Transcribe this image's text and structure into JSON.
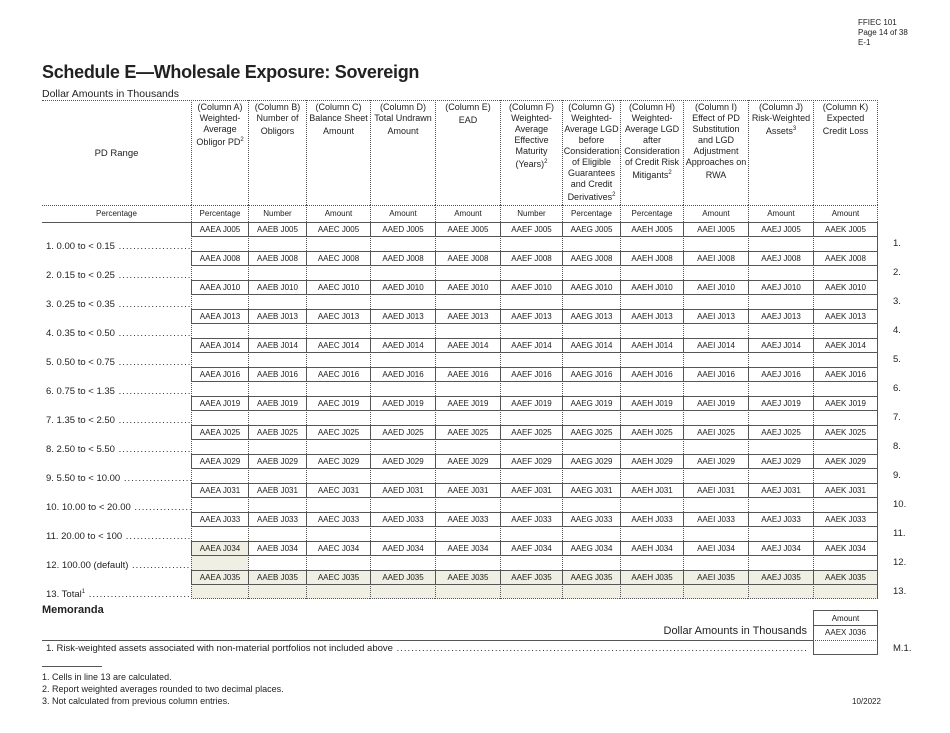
{
  "header": {
    "form": "FFIEC 101",
    "page": "Page 14 of 38",
    "code": "E-1"
  },
  "title": "Schedule E—Wholesale Exposure: Sovereign",
  "subtitle": "Dollar Amounts in Thousands",
  "first_col": {
    "heading": "PD Range",
    "unit": "Percentage"
  },
  "columns": [
    {
      "head": "(Column A) Weighted-Average Obligor PD",
      "sup": "2",
      "unit": "Percentage",
      "letter": "A"
    },
    {
      "head": "(Column B) Number of Obligors",
      "sup": "",
      "unit": "Number",
      "letter": "B"
    },
    {
      "head": "(Column C) Balance Sheet Amount",
      "sup": "",
      "unit": "Amount",
      "letter": "C"
    },
    {
      "head": "(Column D) Total Undrawn Amount",
      "sup": "",
      "unit": "Amount",
      "letter": "D"
    },
    {
      "head": "(Column E) EAD",
      "sup": "",
      "unit": "Amount",
      "letter": "E"
    },
    {
      "head": "(Column F) Weighted-Average Effective Maturity (Years)",
      "sup": "2",
      "unit": "Number",
      "letter": "F"
    },
    {
      "head": "(Column G) Weighted-Average LGD before Consideration of Eligible Guarantees and Credit Derivatives",
      "sup": "2",
      "unit": "Percentage",
      "letter": "G"
    },
    {
      "head": "(Column H) Weighted-Average LGD after Consideration of Credit Risk Mitigants",
      "sup": "2",
      "unit": "Percentage",
      "letter": "H"
    },
    {
      "head": "(Column I) Effect of PD Substitution and LGD Adjustment Approaches on RWA",
      "sup": "",
      "unit": "Amount",
      "letter": "I"
    },
    {
      "head": "(Column J) Risk-Weighted Assets",
      "sup": "3",
      "unit": "Amount",
      "letter": "J"
    },
    {
      "head": "(Column K) Expected Credit Loss",
      "sup": "",
      "unit": "Amount",
      "letter": "K"
    }
  ],
  "rows": [
    {
      "label": "1. 0.00 to < 0.15",
      "sup": "",
      "num": "1.",
      "code": "J005"
    },
    {
      "label": "2. 0.15 to < 0.25",
      "sup": "",
      "num": "2.",
      "code": "J008"
    },
    {
      "label": "3. 0.25 to < 0.35",
      "sup": "",
      "num": "3.",
      "code": "J010"
    },
    {
      "label": "4. 0.35 to < 0.50",
      "sup": "",
      "num": "4.",
      "code": "J013"
    },
    {
      "label": "5. 0.50 to < 0.75",
      "sup": "",
      "num": "5.",
      "code": "J014"
    },
    {
      "label": "6. 0.75 to < 1.35",
      "sup": "",
      "num": "6.",
      "code": "J016"
    },
    {
      "label": "7. 1.35 to < 2.50",
      "sup": "",
      "num": "7.",
      "code": "J019"
    },
    {
      "label": "8. 2.50 to < 5.50",
      "sup": "",
      "num": "8.",
      "code": "J025"
    },
    {
      "label": "9. 5.50 to < 10.00",
      "sup": "",
      "num": "9.",
      "code": "J029"
    },
    {
      "label": "10. 10.00 to < 20.00",
      "sup": "",
      "num": "10.",
      "code": "J031"
    },
    {
      "label": "11. 20.00 to < 100",
      "sup": "",
      "num": "11.",
      "code": "J033"
    },
    {
      "label": "12. 100.00 (default)",
      "sup": "",
      "num": "12.",
      "code": "J034",
      "shaded": [
        "A"
      ]
    },
    {
      "label": "13. Total",
      "sup": "1",
      "num": "13.",
      "code": "J035",
      "shaded": [
        "A",
        "B",
        "C",
        "D",
        "E",
        "F",
        "G",
        "H",
        "I",
        "J",
        "K"
      ]
    }
  ],
  "memoranda": {
    "title": "Memoranda",
    "unit": "Amount",
    "dollar": "Dollar Amounts in Thousands",
    "code": "AAEX J036",
    "item": "1. Risk-weighted assets associated with non-material portfolios not included above",
    "num": "M.1."
  },
  "footnotes": [
    "1. Cells in line 13 are calculated.",
    "2. Report weighted averages rounded to two decimal places.",
    "3. Not calculated from previous column entries."
  ],
  "revision": "10/2022"
}
